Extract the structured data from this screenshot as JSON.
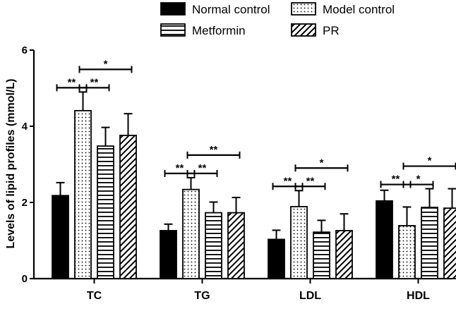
{
  "chart_data": {
    "type": "bar",
    "title": "",
    "xlabel": "",
    "ylabel": "Levels of lipid profiles (mmol/L)",
    "ylim": [
      0,
      6
    ],
    "yticks": [
      "0",
      "2",
      "4",
      "6"
    ],
    "grid": false,
    "legend_position": "top-right",
    "categories": [
      "TC",
      "TG",
      "LDL",
      "HDL"
    ],
    "series": [
      {
        "name": "Normal control",
        "pattern": "solid",
        "values": [
          2.18,
          1.26,
          1.03,
          2.04
        ],
        "errors": [
          0.34,
          0.17,
          0.24,
          0.28
        ]
      },
      {
        "name": "Model control",
        "pattern": "dots",
        "values": [
          4.41,
          2.34,
          1.89,
          1.39
        ],
        "errors": [
          0.49,
          0.31,
          0.42,
          0.49
        ]
      },
      {
        "name": "Metformin",
        "pattern": "horizontal-lines",
        "values": [
          3.48,
          1.73,
          1.22,
          1.87
        ],
        "errors": [
          0.49,
          0.28,
          0.31,
          0.49
        ]
      },
      {
        "name": "PR",
        "pattern": "diagonal-lines",
        "values": [
          3.76,
          1.73,
          1.26,
          1.85
        ],
        "errors": [
          0.57,
          0.4,
          0.44,
          0.51
        ]
      }
    ],
    "significance": [
      {
        "category": 0,
        "from": 0,
        "to": 1,
        "label": "**",
        "level": 0
      },
      {
        "category": 0,
        "from": 1,
        "to": 2,
        "label": "**",
        "level": 0
      },
      {
        "category": 0,
        "from": 1,
        "to": 3,
        "label": "*",
        "level": 1
      },
      {
        "category": 1,
        "from": 0,
        "to": 1,
        "label": "**",
        "level": 0
      },
      {
        "category": 1,
        "from": 1,
        "to": 2,
        "label": "**",
        "level": 0
      },
      {
        "category": 1,
        "from": 1,
        "to": 3,
        "label": "**",
        "level": 1
      },
      {
        "category": 2,
        "from": 0,
        "to": 1,
        "label": "**",
        "level": 0
      },
      {
        "category": 2,
        "from": 1,
        "to": 2,
        "label": "**",
        "level": 0
      },
      {
        "category": 2,
        "from": 1,
        "to": 3,
        "label": "*",
        "level": 1
      },
      {
        "category": 3,
        "from": 0,
        "to": 1,
        "label": "**",
        "level": 0
      },
      {
        "category": 3,
        "from": 1,
        "to": 2,
        "label": "*",
        "level": 0
      },
      {
        "category": 3,
        "from": 1,
        "to": 3,
        "label": "*",
        "level": 1
      }
    ],
    "colors": {
      "bar_fill": "#000000",
      "bar_background": "#ffffff",
      "axis": "#000000"
    }
  }
}
